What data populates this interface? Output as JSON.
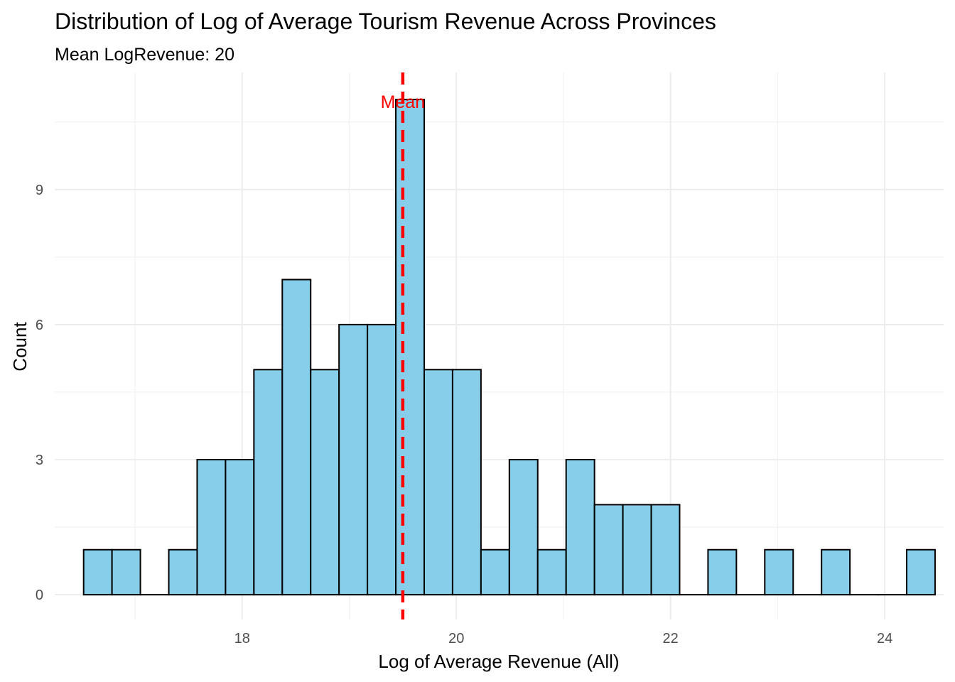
{
  "chart_data": {
    "type": "bar",
    "subtype": "histogram",
    "title": "Distribution of Log of Average Tourism Revenue Across Provinces",
    "subtitle": "Mean LogRevenue: 20",
    "xlabel": "Log of Average Revenue (All)",
    "ylabel": "Count",
    "xlim": [
      16.25,
      24.55
    ],
    "ylim": [
      -0.55,
      11.6
    ],
    "x_ticks": [
      18,
      20,
      22,
      24
    ],
    "x_tick_labels": [
      "18",
      "20",
      "22",
      "24"
    ],
    "y_ticks": [
      0,
      3,
      6,
      9
    ],
    "y_tick_labels": [
      "0",
      "3",
      "6",
      "9"
    ],
    "bin_width": 0.265,
    "bin_start": 16.52,
    "values": [
      1,
      1,
      0,
      1,
      3,
      3,
      5,
      7,
      5,
      6,
      6,
      11,
      5,
      5,
      1,
      3,
      1,
      3,
      2,
      2,
      2,
      0,
      1,
      0,
      1,
      0,
      1,
      0,
      0,
      1
    ],
    "bar_color": "#87CEEB",
    "bar_outline": "#000000",
    "mean_line": {
      "x": 19.5,
      "color": "#FF0000",
      "style": "dashed",
      "label": "Mean",
      "label_y": 10.95
    },
    "grid": true,
    "legend": "none"
  }
}
